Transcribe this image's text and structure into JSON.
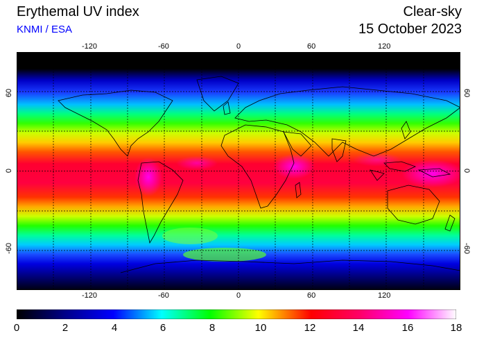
{
  "header": {
    "title": "Erythemal UV index",
    "source": "KNMI / ESA",
    "mode": "Clear-sky",
    "date": "15 October 2023"
  },
  "map": {
    "lon_ticks": [
      "-120",
      "-60",
      "0",
      "60",
      "120"
    ],
    "lat_ticks": [
      "60",
      "0",
      "-60"
    ],
    "colors": {
      "source_text": "#0000ff",
      "gridline": "#000000",
      "coastline": "#000000"
    }
  },
  "colorbar": {
    "labels": [
      "0",
      "2",
      "4",
      "6",
      "8",
      "10",
      "12",
      "14",
      "16",
      "18"
    ],
    "min": 0,
    "max": 18,
    "colors": [
      "#000000",
      "#0000ff",
      "#00ffff",
      "#00ff00",
      "#ffff00",
      "#ff0000",
      "#ff00ff",
      "#ffffff"
    ]
  }
}
